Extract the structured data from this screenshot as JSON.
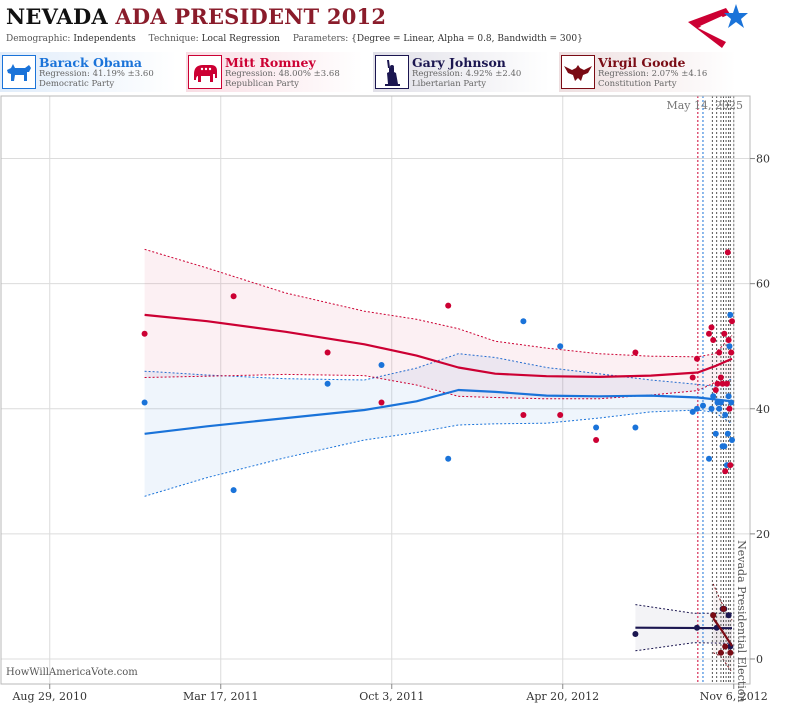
{
  "header": {
    "title_state": "NEVADA",
    "title_rest": "ADA PRESIDENT 2012",
    "demographic_label": "Demographic:",
    "demographic_value": "Independents",
    "technique_label": "Technique:",
    "technique_value": "Local Regression",
    "parameters_label": "Parameters:",
    "parameters_value": "{Degree = Linear, Alpha = 0.8, Bandwidth = 300}"
  },
  "logo_icon": "flag-star-logo-icon",
  "candidates": [
    {
      "name": "Barack Obama",
      "regression": "Regression: 41.19% ±3.60",
      "party": "Democratic Party",
      "color": "#1a73d9",
      "icon": "donkey-icon"
    },
    {
      "name": "Mitt Romney",
      "regression": "Regression: 48.00% ±3.68",
      "party": "Republican Party",
      "color": "#cc0033",
      "icon": "elephant-icon"
    },
    {
      "name": "Gary Johnson",
      "regression": "Regression: 4.92% ±2.40",
      "party": "Libertarian Party",
      "color": "#1b1650",
      "icon": "liberty-statue-icon"
    },
    {
      "name": "Virgil Goode",
      "regression": "Regression: 2.07% ±4.16",
      "party": "Constitution Party",
      "color": "#7a0b14",
      "icon": "eagle-icon"
    }
  ],
  "credit": "HowWillAmericaVote.com",
  "chart_data": {
    "type": "scatter",
    "date_label": "May 14, 2025",
    "event_label": "Nevada Presidential Election",
    "event_date": "2012-11-06",
    "x_ticks": [
      "Aug 29, 2010",
      "Mar 17, 2011",
      "Oct 3, 2011",
      "Apr 20, 2012",
      "Nov 6, 2012"
    ],
    "xlim": [
      "2010-07-03",
      "2012-11-25"
    ],
    "y_ticks": [
      "0",
      "20",
      "40",
      "60",
      "80"
    ],
    "ylim": [
      -4,
      90
    ],
    "grid": true,
    "poll_dates": [
      "2012-09-25",
      "2012-10-01",
      "2012-10-12",
      "2012-10-17",
      "2012-10-22",
      "2012-10-25",
      "2012-10-28",
      "2012-10-31",
      "2012-11-02"
    ],
    "series": [
      {
        "name": "Barack Obama",
        "color": "#1a73d9",
        "points": [
          [
            "2010-12-18",
            41
          ],
          [
            "2011-04-01",
            27
          ],
          [
            "2011-07-20",
            44
          ],
          [
            "2011-09-21",
            47
          ],
          [
            "2011-12-08",
            32
          ],
          [
            "2012-03-05",
            54
          ],
          [
            "2012-04-17",
            50
          ],
          [
            "2012-05-29",
            37
          ],
          [
            "2012-07-14",
            37
          ],
          [
            "2012-09-19",
            39.5
          ],
          [
            "2012-09-24",
            40
          ],
          [
            "2012-10-01",
            40.5
          ],
          [
            "2012-10-08",
            32
          ],
          [
            "2012-10-11",
            40
          ],
          [
            "2012-10-13",
            42
          ],
          [
            "2012-10-16",
            36
          ],
          [
            "2012-10-18",
            41
          ],
          [
            "2012-10-20",
            40
          ],
          [
            "2012-10-22",
            41
          ],
          [
            "2012-10-24",
            34
          ],
          [
            "2012-10-26",
            34
          ],
          [
            "2012-10-27",
            39
          ],
          [
            "2012-10-29",
            31
          ],
          [
            "2012-10-30",
            36
          ],
          [
            "2012-10-31",
            42
          ],
          [
            "2012-11-01",
            50
          ],
          [
            "2012-11-02",
            55
          ],
          [
            "2012-11-03",
            41
          ],
          [
            "2012-11-04",
            35
          ]
        ],
        "trend": [
          [
            "2010-12-18",
            36.0
          ],
          [
            "2011-03-01",
            37.2
          ],
          [
            "2011-06-01",
            38.5
          ],
          [
            "2011-09-01",
            39.8
          ],
          [
            "2011-11-01",
            41.2
          ],
          [
            "2011-12-20",
            43.0
          ],
          [
            "2012-02-01",
            42.7
          ],
          [
            "2012-04-01",
            42.1
          ],
          [
            "2012-06-01",
            42.0
          ],
          [
            "2012-08-01",
            42.1
          ],
          [
            "2012-09-25",
            41.8
          ],
          [
            "2012-10-15",
            41.5
          ],
          [
            "2012-11-04",
            41.19
          ]
        ],
        "band_upper": [
          [
            "2010-12-18",
            46.0
          ],
          [
            "2011-03-01",
            45.4
          ],
          [
            "2011-06-01",
            44.8
          ],
          [
            "2011-09-01",
            44.6
          ],
          [
            "2011-11-01",
            46.5
          ],
          [
            "2011-12-20",
            48.8
          ],
          [
            "2012-02-01",
            48.2
          ],
          [
            "2012-04-01",
            46.6
          ],
          [
            "2012-06-01",
            45.6
          ],
          [
            "2012-08-01",
            44.6
          ],
          [
            "2012-09-25",
            43.9
          ],
          [
            "2012-10-15",
            43.6
          ],
          [
            "2012-11-04",
            44.8
          ]
        ],
        "band_lower": [
          [
            "2010-12-18",
            26.0
          ],
          [
            "2011-03-01",
            29.0
          ],
          [
            "2011-06-01",
            32.2
          ],
          [
            "2011-09-01",
            35.0
          ],
          [
            "2011-11-01",
            36.2
          ],
          [
            "2011-12-20",
            37.4
          ],
          [
            "2012-02-01",
            37.6
          ],
          [
            "2012-04-01",
            37.7
          ],
          [
            "2012-06-01",
            38.5
          ],
          [
            "2012-08-01",
            39.5
          ],
          [
            "2012-09-25",
            39.8
          ],
          [
            "2012-10-15",
            39.4
          ],
          [
            "2012-11-04",
            37.6
          ]
        ]
      },
      {
        "name": "Mitt Romney",
        "color": "#cc0033",
        "points": [
          [
            "2010-12-18",
            52
          ],
          [
            "2011-04-01",
            58
          ],
          [
            "2011-07-20",
            49
          ],
          [
            "2011-09-21",
            41
          ],
          [
            "2011-12-08",
            56.5
          ],
          [
            "2012-03-05",
            39
          ],
          [
            "2012-04-17",
            39
          ],
          [
            "2012-05-29",
            35
          ],
          [
            "2012-07-14",
            49
          ],
          [
            "2012-09-19",
            45
          ],
          [
            "2012-09-24",
            48
          ],
          [
            "2012-10-08",
            52
          ],
          [
            "2012-10-11",
            53
          ],
          [
            "2012-10-13",
            51
          ],
          [
            "2012-10-16",
            43
          ],
          [
            "2012-10-18",
            44
          ],
          [
            "2012-10-20",
            49
          ],
          [
            "2012-10-22",
            45
          ],
          [
            "2012-10-24",
            44
          ],
          [
            "2012-10-26",
            52
          ],
          [
            "2012-10-27",
            30
          ],
          [
            "2012-10-29",
            44
          ],
          [
            "2012-10-30",
            65
          ],
          [
            "2012-10-31",
            51
          ],
          [
            "2012-11-01",
            40
          ],
          [
            "2012-11-02",
            31
          ],
          [
            "2012-11-03",
            49
          ],
          [
            "2012-11-04",
            54
          ]
        ],
        "trend": [
          [
            "2010-12-18",
            55.0
          ],
          [
            "2011-03-01",
            54.0
          ],
          [
            "2011-06-01",
            52.3
          ],
          [
            "2011-09-01",
            50.3
          ],
          [
            "2011-11-01",
            48.5
          ],
          [
            "2011-12-20",
            46.6
          ],
          [
            "2012-02-01",
            45.6
          ],
          [
            "2012-04-01",
            45.2
          ],
          [
            "2012-06-01",
            45.1
          ],
          [
            "2012-08-01",
            45.3
          ],
          [
            "2012-09-25",
            45.8
          ],
          [
            "2012-10-15",
            46.8
          ],
          [
            "2012-11-04",
            48.0
          ]
        ],
        "band_upper": [
          [
            "2010-12-18",
            65.5
          ],
          [
            "2011-03-01",
            62.5
          ],
          [
            "2011-06-01",
            58.5
          ],
          [
            "2011-09-01",
            55.6
          ],
          [
            "2011-11-01",
            54.3
          ],
          [
            "2011-12-20",
            52.8
          ],
          [
            "2012-02-01",
            50.8
          ],
          [
            "2012-04-01",
            49.7
          ],
          [
            "2012-06-01",
            48.8
          ],
          [
            "2012-08-01",
            48.4
          ],
          [
            "2012-09-25",
            48.3
          ],
          [
            "2012-10-15",
            48.8
          ],
          [
            "2012-11-04",
            51.7
          ]
        ],
        "band_lower": [
          [
            "2010-12-18",
            45.0
          ],
          [
            "2011-03-01",
            45.2
          ],
          [
            "2011-06-01",
            45.5
          ],
          [
            "2011-09-01",
            45.3
          ],
          [
            "2011-11-01",
            43.8
          ],
          [
            "2011-12-20",
            42.0
          ],
          [
            "2012-02-01",
            41.8
          ],
          [
            "2012-04-01",
            41.6
          ],
          [
            "2012-06-01",
            41.6
          ],
          [
            "2012-08-01",
            42.2
          ],
          [
            "2012-09-25",
            42.9
          ],
          [
            "2012-10-15",
            44.2
          ],
          [
            "2012-11-04",
            44.3
          ]
        ]
      },
      {
        "name": "Gary Johnson",
        "color": "#1b1650",
        "points": [
          [
            "2012-07-14",
            4
          ],
          [
            "2012-09-24",
            5
          ],
          [
            "2012-10-13",
            7
          ],
          [
            "2012-10-17",
            5
          ],
          [
            "2012-10-24",
            8
          ],
          [
            "2012-10-26",
            8
          ],
          [
            "2012-10-31",
            7
          ],
          [
            "2012-11-02",
            2
          ]
        ],
        "trend": [
          [
            "2012-07-14",
            5.0
          ],
          [
            "2012-11-04",
            4.92
          ]
        ],
        "band_upper": [
          [
            "2012-07-14",
            8.7
          ],
          [
            "2012-09-20",
            7.3
          ],
          [
            "2012-11-04",
            7.3
          ]
        ],
        "band_lower": [
          [
            "2012-07-14",
            1.3
          ],
          [
            "2012-09-20",
            2.6
          ],
          [
            "2012-11-04",
            2.5
          ]
        ]
      },
      {
        "name": "Virgil Goode",
        "color": "#7a0b14",
        "points": [
          [
            "2012-10-13",
            7
          ],
          [
            "2012-10-22",
            1
          ],
          [
            "2012-10-25",
            8
          ],
          [
            "2012-10-27",
            2
          ],
          [
            "2012-11-02",
            1
          ]
        ],
        "trend": [
          [
            "2012-10-13",
            6.5
          ],
          [
            "2012-10-22",
            4.8
          ],
          [
            "2012-11-04",
            2.07
          ]
        ],
        "band_upper": [
          [
            "2012-10-13",
            12.0
          ],
          [
            "2012-10-22",
            9.2
          ],
          [
            "2012-11-04",
            6.2
          ]
        ],
        "band_lower": [
          [
            "2012-10-13",
            1.0
          ],
          [
            "2012-10-22",
            0.4
          ],
          [
            "2012-11-04",
            -2.1
          ]
        ]
      }
    ]
  }
}
